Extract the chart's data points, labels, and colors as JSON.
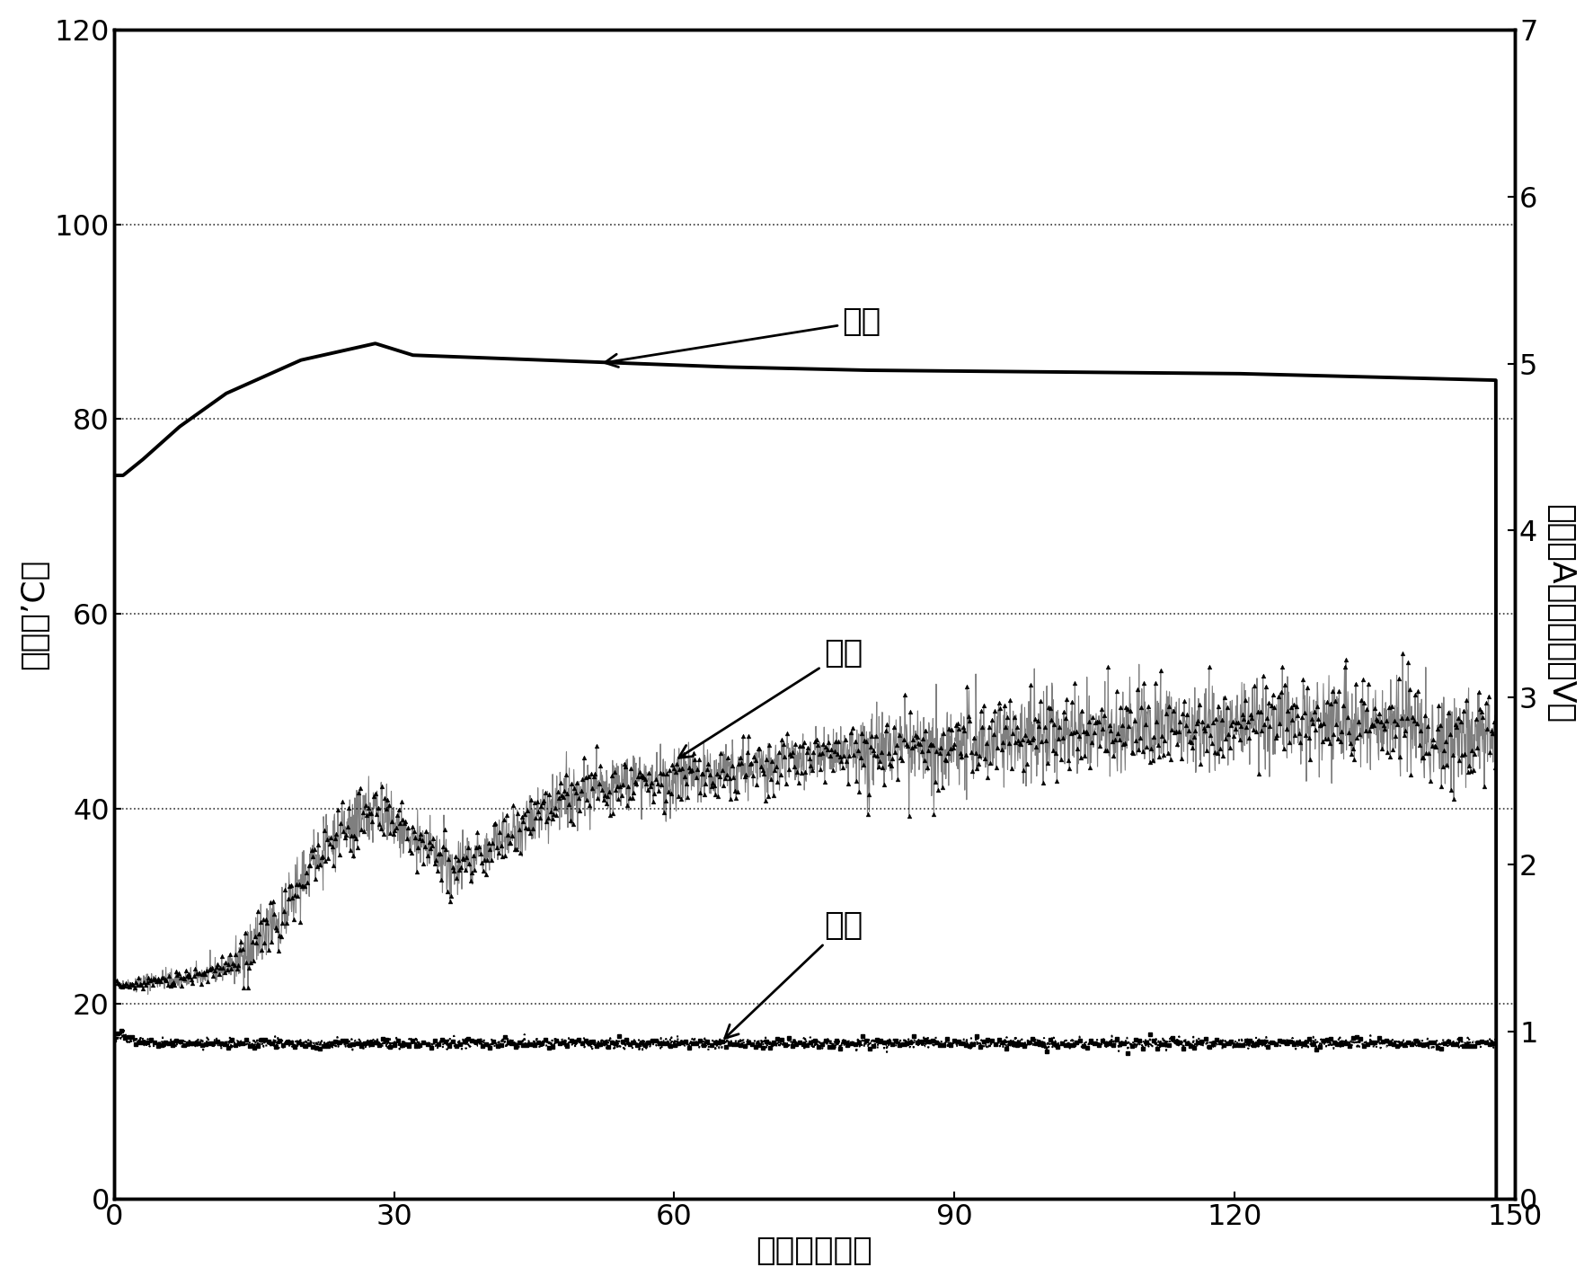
{
  "title": "",
  "xlabel": "时间（分钟）",
  "ylabel_left": "温度（’C）",
  "ylabel_right": "电流（A）和电压（V）",
  "xlim": [
    0,
    150
  ],
  "ylim_left": [
    0,
    120
  ],
  "ylim_right": [
    0,
    7
  ],
  "xticks": [
    0,
    30,
    60,
    90,
    120,
    150
  ],
  "yticks_left": [
    0,
    20,
    40,
    60,
    80,
    100,
    120
  ],
  "yticks_right": [
    0,
    1,
    2,
    3,
    4,
    5,
    6,
    7
  ],
  "label_voltage": "电压",
  "label_temp": "温度",
  "label_current": "电流",
  "background_color": "#ffffff",
  "line_color": "#000000",
  "font_size_label": 26,
  "font_size_tick": 23,
  "font_size_annotation": 26
}
